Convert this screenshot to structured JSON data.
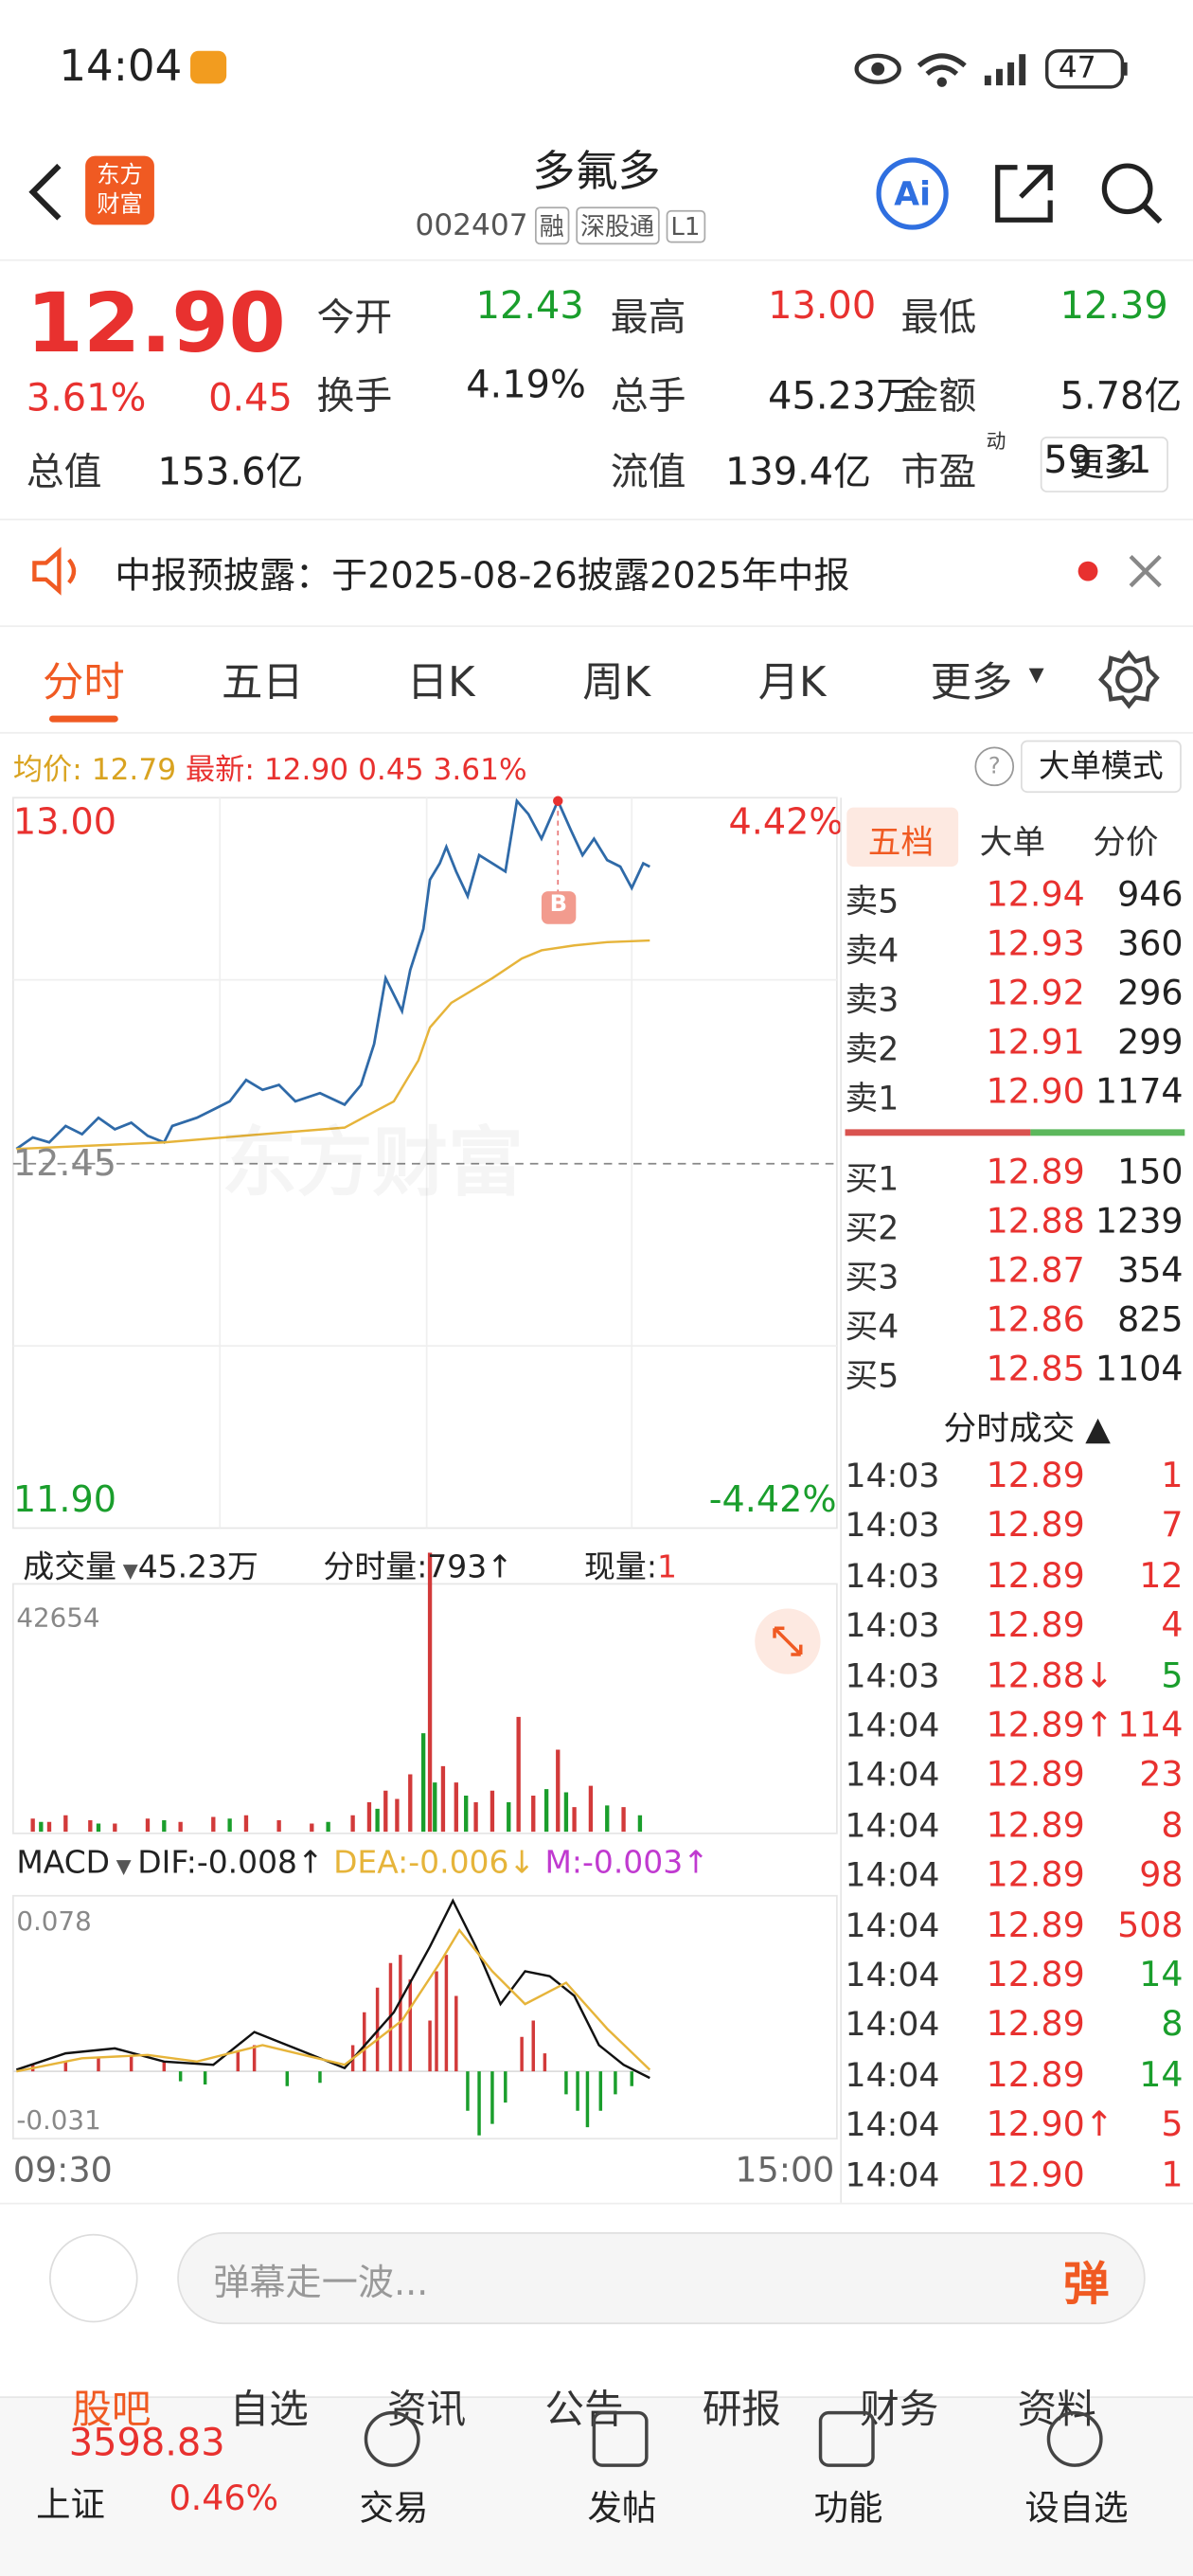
{
  "status": {
    "time": "14:04",
    "battery": "47"
  },
  "header": {
    "logo": [
      "东方",
      "财富"
    ],
    "title": "多氟多",
    "code": "002407",
    "tags": [
      "融",
      "深股通",
      "L1"
    ],
    "ai": "Ai"
  },
  "quote": {
    "price": "12.90",
    "pct": "3.61%",
    "change": "0.45",
    "fields": [
      {
        "label": "今开",
        "value": "12.43",
        "color": "#1a9e2c"
      },
      {
        "label": "最高",
        "value": "13.00",
        "color": "#e8312f"
      },
      {
        "label": "最低",
        "value": "12.39",
        "color": "#1a9e2c"
      },
      {
        "label": "换手",
        "value": "4.19%",
        "color": "#222"
      },
      {
        "label": "总手",
        "value": "45.23万",
        "color": "#222"
      },
      {
        "label": "金额",
        "value": "5.78亿",
        "color": "#222"
      },
      {
        "label": "总值",
        "value": "153.6亿",
        "color": "#222"
      },
      {
        "label": "流值",
        "value": "139.4亿",
        "color": "#222"
      },
      {
        "label": "市盈",
        "sup": "动",
        "value": "59.31",
        "color": "#222"
      }
    ],
    "more": "更多"
  },
  "notice": "中报预披露：于2025-08-26披露2025年中报",
  "tabs": [
    "分时",
    "五日",
    "日K",
    "周K",
    "月K",
    "更多"
  ],
  "infobar": {
    "avgLabel": "均价:",
    "avg": "12.79",
    "latestLabel": "最新:",
    "latest": "12.90",
    "change": "0.45",
    "pct": "3.61%",
    "mode": "大单模式"
  },
  "chart": {
    "ymax": "13.00",
    "ymin": "11.90",
    "base": "12.45",
    "pmax": "4.42%",
    "pmin": "-4.42%",
    "watermark": "东方财富",
    "marker": "B"
  },
  "volume": {
    "label": "成交量",
    "total": "45.23万",
    "period": "分时量:793↑",
    "nowLabel": "现量:",
    "now": "1",
    "max": "42654"
  },
  "macd": {
    "label": "MACD",
    "dif": "DIF:-0.008↑",
    "dea": "DEA:-0.006↓",
    "m": "M:-0.003↑",
    "max": "0.078",
    "min": "-0.031"
  },
  "timeaxis": [
    "09:30",
    "15:00"
  ],
  "orderbook": {
    "tabs": [
      "五档",
      "大单",
      "分价"
    ],
    "asks": [
      [
        "卖5",
        "12.94",
        "946"
      ],
      [
        "卖4",
        "12.93",
        "360"
      ],
      [
        "卖3",
        "12.92",
        "296"
      ],
      [
        "卖2",
        "12.91",
        "299"
      ],
      [
        "卖1",
        "12.90",
        "1174"
      ]
    ],
    "bids": [
      [
        "买1",
        "12.89",
        "150"
      ],
      [
        "买2",
        "12.88",
        "1239"
      ],
      [
        "买3",
        "12.87",
        "354"
      ],
      [
        "买4",
        "12.86",
        "825"
      ],
      [
        "买5",
        "12.85",
        "1104"
      ]
    ],
    "tradesTitle": "分时成交",
    "trades": [
      {
        "time": "14:03",
        "price": "12.89",
        "vol": "1",
        "color": "#e8312f"
      },
      {
        "time": "14:03",
        "price": "12.89",
        "vol": "7",
        "color": "#e8312f"
      },
      {
        "time": "14:03",
        "price": "12.89",
        "vol": "12",
        "color": "#e8312f"
      },
      {
        "time": "14:03",
        "price": "12.89",
        "vol": "4",
        "color": "#e8312f"
      },
      {
        "time": "14:03",
        "price": "12.88↓",
        "vol": "5",
        "color": "#1a9e2c"
      },
      {
        "time": "14:04",
        "price": "12.89↑",
        "vol": "114",
        "color": "#e8312f"
      },
      {
        "time": "14:04",
        "price": "12.89",
        "vol": "23",
        "color": "#e8312f"
      },
      {
        "time": "14:04",
        "price": "12.89",
        "vol": "8",
        "color": "#e8312f"
      },
      {
        "time": "14:04",
        "price": "12.89",
        "vol": "98",
        "color": "#e8312f"
      },
      {
        "time": "14:04",
        "price": "12.89",
        "vol": "508",
        "color": "#e8312f"
      },
      {
        "time": "14:04",
        "price": "12.89",
        "vol": "14",
        "color": "#1a9e2c"
      },
      {
        "time": "14:04",
        "price": "12.89",
        "vol": "8",
        "color": "#1a9e2c"
      },
      {
        "time": "14:04",
        "price": "12.89",
        "vol": "14",
        "color": "#1a9e2c"
      },
      {
        "time": "14:04",
        "price": "12.90↑",
        "vol": "5",
        "color": "#e8312f"
      },
      {
        "time": "14:04",
        "price": "12.90",
        "vol": "1",
        "color": "#e8312f"
      }
    ]
  },
  "comment": {
    "placeholder": "弹幕走一波...",
    "button": "弹"
  },
  "subtabs": [
    "股吧",
    "自选",
    "资讯",
    "公告",
    "研报",
    "财务",
    "资料"
  ],
  "nav": {
    "index": "3598.83",
    "name": "上证",
    "pct": "0.46%",
    "items": [
      "交易",
      "发帖",
      "功能",
      "设自选"
    ]
  }
}
